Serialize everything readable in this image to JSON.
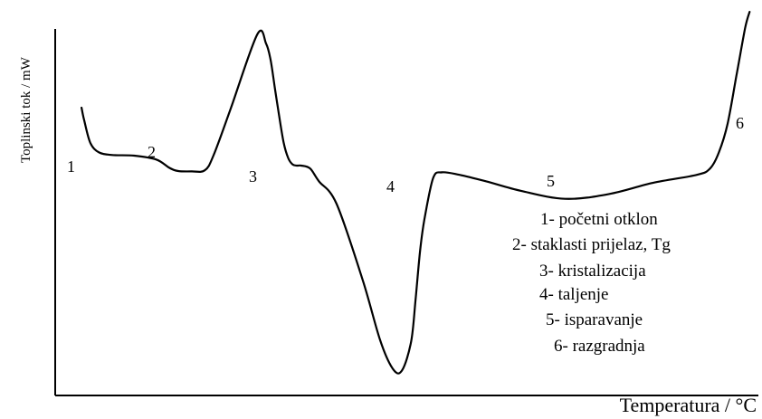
{
  "chart_data": {
    "type": "line",
    "title": "",
    "xlabel": "Temperatura / °C",
    "ylabel": "Toplinski tok / mW",
    "grid": false,
    "x_ticks": false,
    "y_ticks": false,
    "peak_labels": [
      "1",
      "2",
      "3",
      "4",
      "5",
      "6"
    ],
    "legend": {
      "placement": "right",
      "items": [
        "1- početni otklon",
        "2- staklasti prijelaz, Tg",
        "3- kristalizacija",
        "4- taljenje",
        "5- isparavanje",
        "6- razgradnja"
      ]
    },
    "series": [
      {
        "line_color": "#000000",
        "x": [
          0.0,
          0.3,
          1.0,
          2.0,
          3.5,
          6.0,
          8.5,
          10.0,
          11.0,
          12.5,
          14.0,
          15.0,
          17.0,
          20.0,
          21.0,
          21.5,
          22.0,
          22.5,
          23.0,
          23.5,
          24.0,
          24.5,
          25.0,
          26.0,
          27.0,
          29.0,
          32.0,
          34.0,
          35.5,
          36.5,
          37.5,
          38.0,
          38.5,
          39.0,
          40.0,
          41.0,
          43.0,
          46.0,
          50.0,
          55.0,
          60.0,
          65.0,
          70.0,
          71.5,
          72.5,
          73.5,
          74.5,
          75.5,
          76.0
        ],
        "y": [
          30.0,
          26.0,
          19.0,
          16.0,
          15.2,
          15.0,
          13.8,
          11.2,
          10.2,
          10.1,
          10.4,
          15.0,
          30.0,
          53.0,
          50.0,
          45.0,
          36.0,
          27.0,
          19.0,
          14.3,
          12.3,
          11.9,
          11.9,
          11.0,
          7.0,
          0.0,
          -24.0,
          -43.0,
          -52.0,
          -52.0,
          -43.0,
          -30.0,
          -15.0,
          -5.0,
          8.0,
          9.8,
          9.0,
          7.0,
          4.0,
          1.5,
          3.0,
          6.5,
          9.0,
          11.0,
          16.0,
          25.0,
          40.0,
          55.0,
          60.0
        ]
      }
    ],
    "xlim": [
      -3,
      77
    ],
    "ylim": [
      -60,
      62
    ]
  }
}
